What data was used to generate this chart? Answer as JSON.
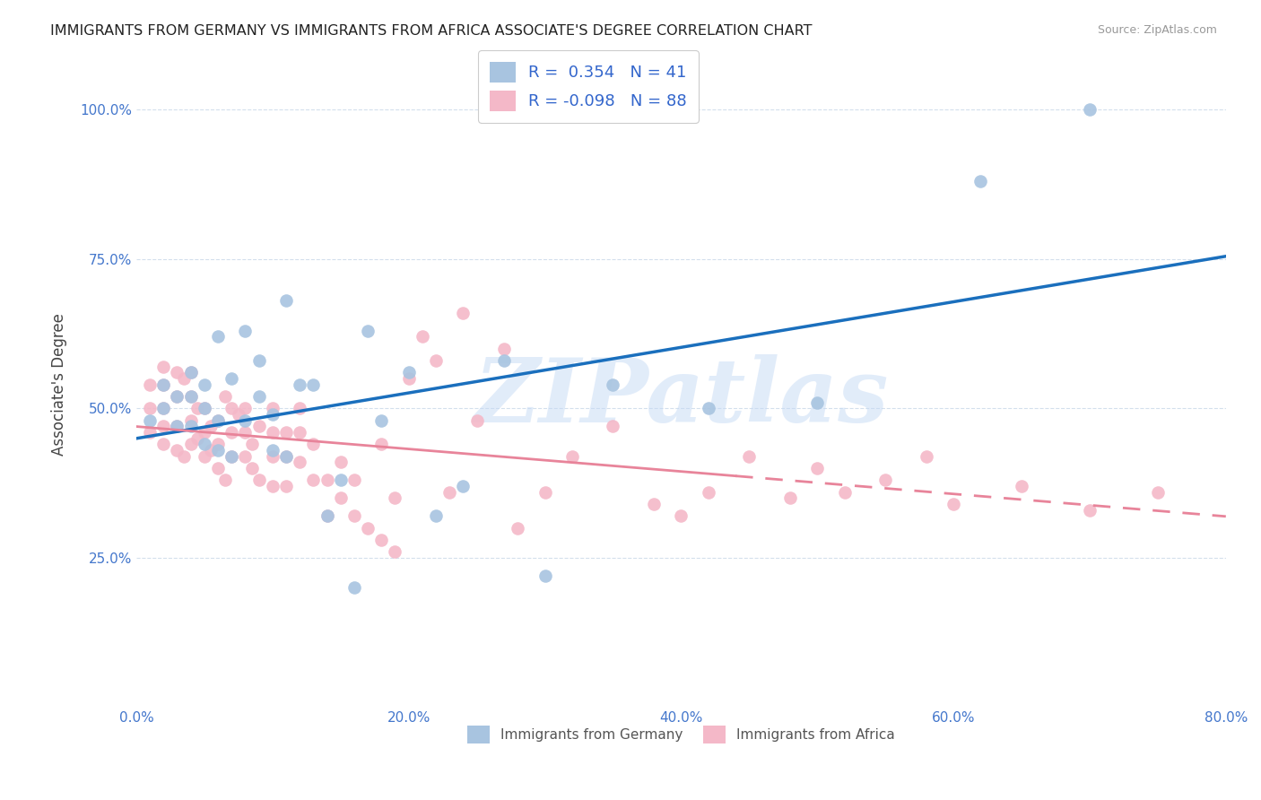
{
  "title": "IMMIGRANTS FROM GERMANY VS IMMIGRANTS FROM AFRICA ASSOCIATE'S DEGREE CORRELATION CHART",
  "source": "Source: ZipAtlas.com",
  "xlabel": "",
  "ylabel": "Associate's Degree",
  "xlim": [
    0.0,
    0.8
  ],
  "ylim": [
    0.0,
    1.08
  ],
  "xtick_labels": [
    "0.0%",
    "20.0%",
    "40.0%",
    "60.0%",
    "80.0%"
  ],
  "xtick_vals": [
    0.0,
    0.2,
    0.4,
    0.6,
    0.8
  ],
  "ytick_labels": [
    "25.0%",
    "50.0%",
    "75.0%",
    "100.0%"
  ],
  "ytick_vals": [
    0.25,
    0.5,
    0.75,
    1.0
  ],
  "germany_color": "#a8c4e0",
  "africa_color": "#f4b8c8",
  "germany_line_color": "#1a6fbd",
  "africa_line_color": "#e8849a",
  "r_germany": 0.354,
  "n_germany": 41,
  "r_africa": -0.098,
  "n_africa": 88,
  "legend_label_germany": "Immigrants from Germany",
  "legend_label_africa": "Immigrants from Africa",
  "watermark": "ZIPatlas",
  "germany_scatter_x": [
    0.01,
    0.02,
    0.02,
    0.03,
    0.03,
    0.04,
    0.04,
    0.04,
    0.05,
    0.05,
    0.05,
    0.06,
    0.06,
    0.06,
    0.07,
    0.07,
    0.08,
    0.08,
    0.09,
    0.09,
    0.1,
    0.1,
    0.11,
    0.11,
    0.12,
    0.13,
    0.14,
    0.15,
    0.16,
    0.17,
    0.18,
    0.2,
    0.22,
    0.24,
    0.27,
    0.3,
    0.35,
    0.42,
    0.5,
    0.62,
    0.7
  ],
  "germany_scatter_y": [
    0.48,
    0.5,
    0.54,
    0.47,
    0.52,
    0.47,
    0.52,
    0.56,
    0.44,
    0.5,
    0.54,
    0.43,
    0.48,
    0.62,
    0.42,
    0.55,
    0.48,
    0.63,
    0.58,
    0.52,
    0.43,
    0.49,
    0.42,
    0.68,
    0.54,
    0.54,
    0.32,
    0.38,
    0.2,
    0.63,
    0.48,
    0.56,
    0.32,
    0.37,
    0.58,
    0.22,
    0.54,
    0.5,
    0.51,
    0.88,
    1.0
  ],
  "africa_scatter_x": [
    0.01,
    0.01,
    0.01,
    0.02,
    0.02,
    0.02,
    0.02,
    0.02,
    0.03,
    0.03,
    0.03,
    0.03,
    0.035,
    0.035,
    0.04,
    0.04,
    0.04,
    0.04,
    0.045,
    0.045,
    0.05,
    0.05,
    0.05,
    0.055,
    0.055,
    0.06,
    0.06,
    0.06,
    0.065,
    0.065,
    0.07,
    0.07,
    0.07,
    0.075,
    0.08,
    0.08,
    0.08,
    0.085,
    0.085,
    0.09,
    0.09,
    0.1,
    0.1,
    0.1,
    0.1,
    0.11,
    0.11,
    0.11,
    0.12,
    0.12,
    0.12,
    0.13,
    0.13,
    0.14,
    0.14,
    0.15,
    0.15,
    0.16,
    0.16,
    0.17,
    0.18,
    0.18,
    0.19,
    0.19,
    0.2,
    0.21,
    0.22,
    0.23,
    0.24,
    0.25,
    0.27,
    0.28,
    0.3,
    0.32,
    0.35,
    0.38,
    0.4,
    0.42,
    0.45,
    0.48,
    0.5,
    0.52,
    0.55,
    0.58,
    0.6,
    0.65,
    0.7,
    0.75
  ],
  "africa_scatter_y": [
    0.46,
    0.5,
    0.54,
    0.44,
    0.47,
    0.5,
    0.54,
    0.57,
    0.43,
    0.47,
    0.52,
    0.56,
    0.42,
    0.55,
    0.44,
    0.48,
    0.52,
    0.56,
    0.45,
    0.5,
    0.42,
    0.46,
    0.5,
    0.43,
    0.47,
    0.4,
    0.44,
    0.48,
    0.38,
    0.52,
    0.42,
    0.46,
    0.5,
    0.49,
    0.42,
    0.46,
    0.5,
    0.4,
    0.44,
    0.38,
    0.47,
    0.37,
    0.42,
    0.46,
    0.5,
    0.37,
    0.42,
    0.46,
    0.41,
    0.46,
    0.5,
    0.38,
    0.44,
    0.32,
    0.38,
    0.35,
    0.41,
    0.32,
    0.38,
    0.3,
    0.28,
    0.44,
    0.26,
    0.35,
    0.55,
    0.62,
    0.58,
    0.36,
    0.66,
    0.48,
    0.6,
    0.3,
    0.36,
    0.42,
    0.47,
    0.34,
    0.32,
    0.36,
    0.42,
    0.35,
    0.4,
    0.36,
    0.38,
    0.42,
    0.34,
    0.37,
    0.33,
    0.36
  ]
}
